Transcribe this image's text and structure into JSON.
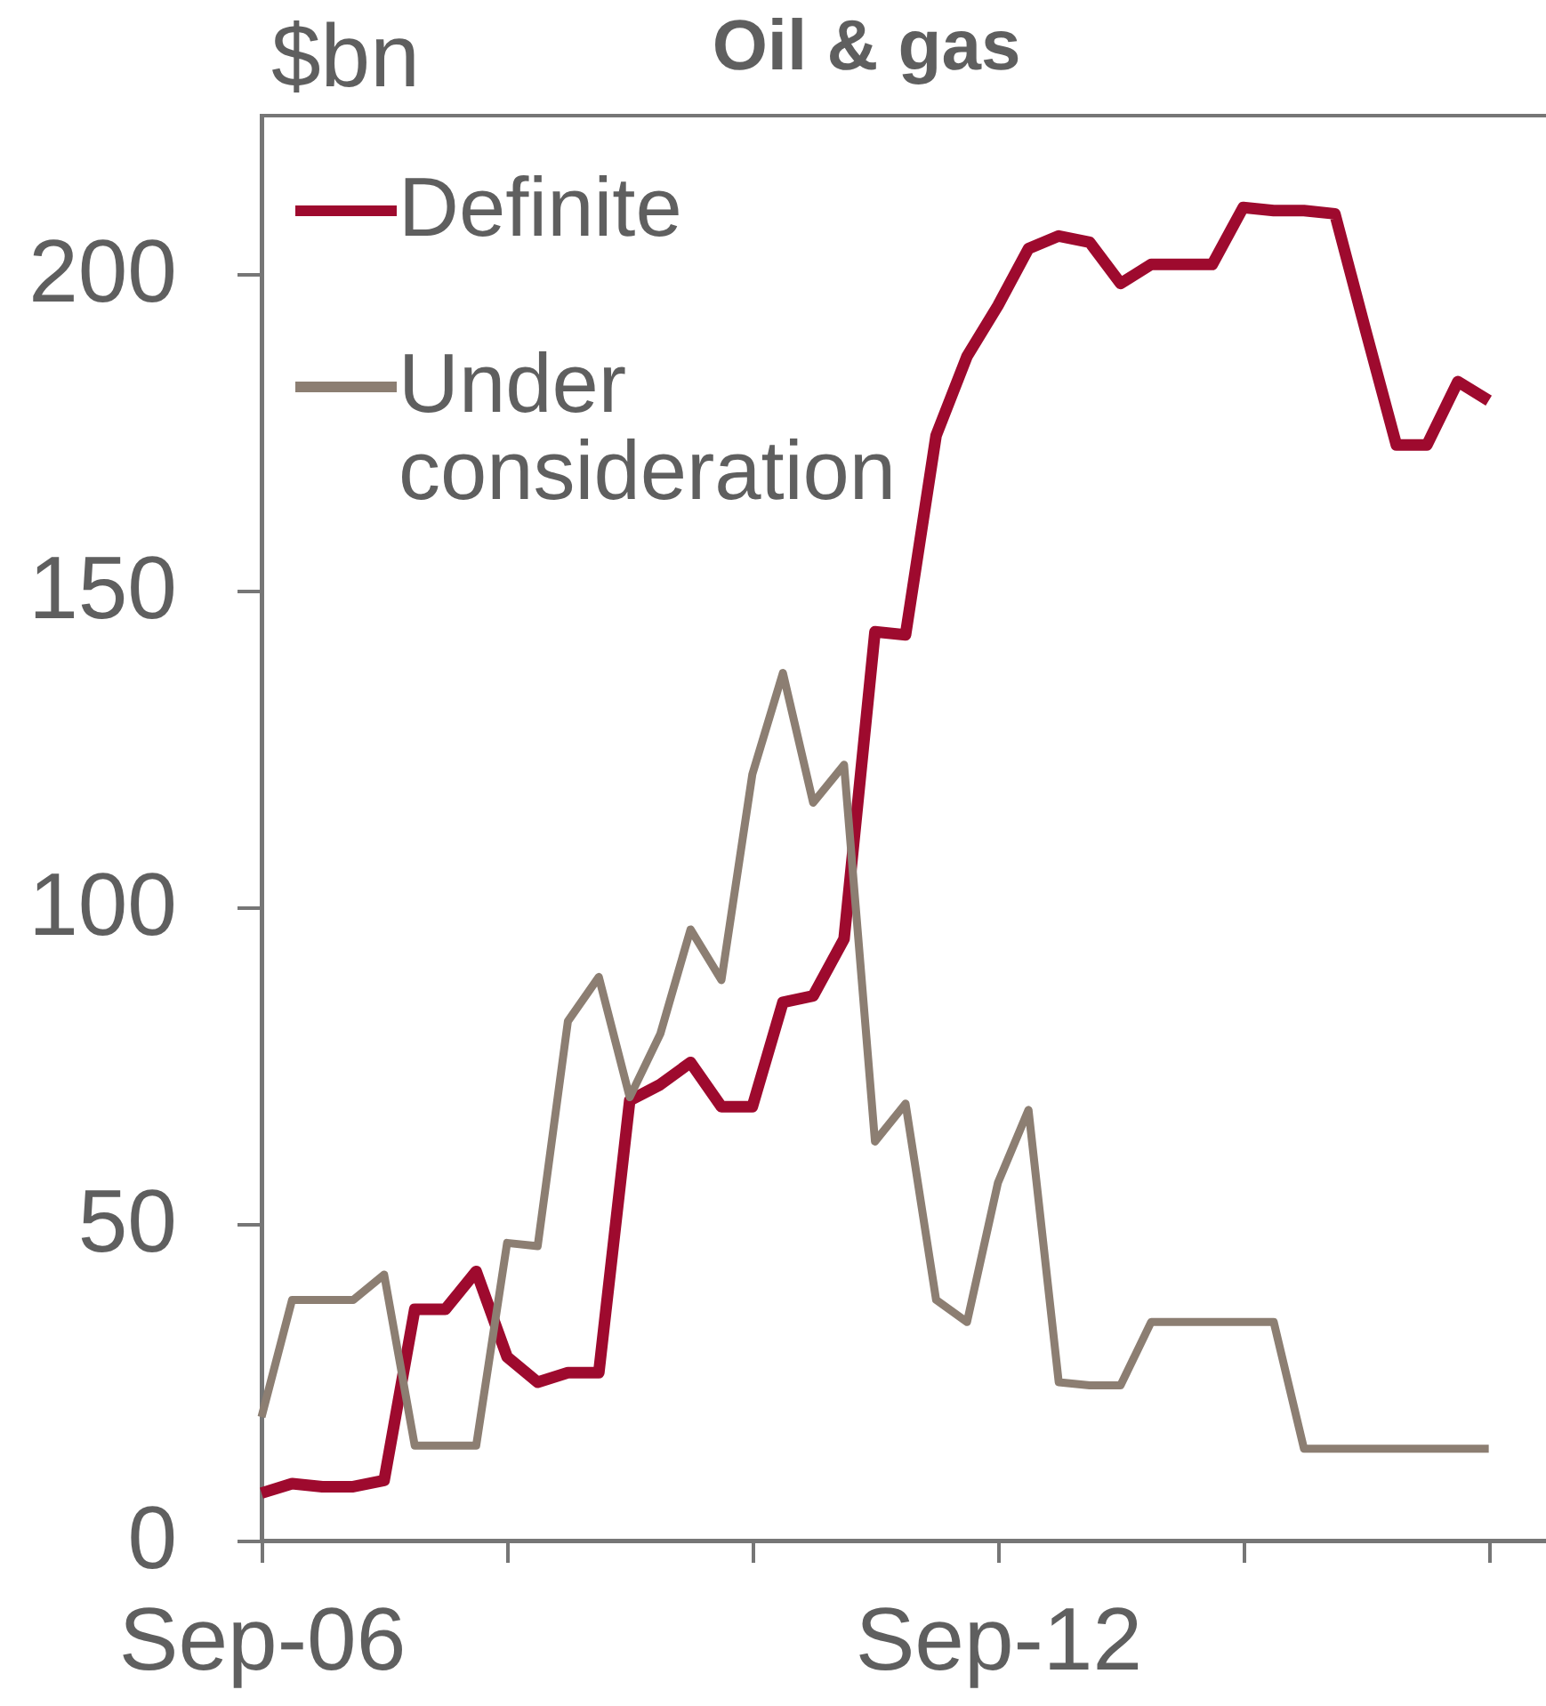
{
  "chart_data": {
    "type": "line",
    "title": "Oil & gas",
    "ylabel": "$bn",
    "x": [
      "2006-09",
      "2006-12",
      "2007-03",
      "2007-06",
      "2007-09",
      "2007-12",
      "2008-03",
      "2008-06",
      "2008-09",
      "2008-12",
      "2009-03",
      "2009-06",
      "2009-09",
      "2009-12",
      "2010-03",
      "2010-06",
      "2010-09",
      "2010-12",
      "2011-03",
      "2011-06",
      "2011-09",
      "2011-12",
      "2012-03",
      "2012-06",
      "2012-09",
      "2012-12",
      "2013-03",
      "2013-06",
      "2013-09",
      "2013-12",
      "2014-03",
      "2014-06",
      "2014-09",
      "2014-12",
      "2015-03",
      "2015-06",
      "2015-09",
      "2015-12",
      "2016-03",
      "2016-06",
      "2016-09"
    ],
    "series": [
      {
        "name": "Definite",
        "color": "#9e0a2e",
        "values": [
          7.5,
          9,
          8.5,
          8.5,
          9.5,
          36.5,
          36.5,
          42.5,
          29,
          25,
          26.5,
          26.5,
          69.5,
          72,
          75.5,
          68.5,
          68.5,
          85,
          86,
          95,
          143.5,
          143,
          174.5,
          187,
          195,
          204,
          206,
          205,
          198.5,
          201.5,
          201.5,
          201.5,
          210.5,
          210,
          210,
          209.5,
          191,
          173,
          173,
          183,
          180
        ]
      },
      {
        "name": "Under consideration",
        "color": "#8c7e72",
        "values": [
          19.5,
          38,
          38,
          38,
          42,
          15,
          15,
          15,
          47,
          46.5,
          82,
          89,
          70,
          80,
          96.5,
          88.5,
          121,
          137,
          116.5,
          122.5,
          63,
          69,
          38,
          34.5,
          56.5,
          68,
          25,
          24.5,
          24.5,
          34.5,
          34.5,
          34.5,
          34.5,
          34.5,
          14.5,
          14.5,
          14.5,
          14.5,
          14.5,
          14.5,
          14.5
        ]
      }
    ],
    "xlim": [
      "2006-09",
      "2017-03"
    ],
    "xticks": [
      {
        "value": "2006-09",
        "label": "Sep-06"
      },
      {
        "value": "2008-09",
        "label": null
      },
      {
        "value": "2010-09",
        "label": null
      },
      {
        "value": "2012-09",
        "label": "Sep-12"
      },
      {
        "value": "2014-09",
        "label": null
      },
      {
        "value": "2016-09",
        "label": null
      }
    ],
    "ylim": [
      0,
      225
    ],
    "yticks": [
      0,
      50,
      100,
      150,
      200
    ],
    "legend": "top left"
  }
}
